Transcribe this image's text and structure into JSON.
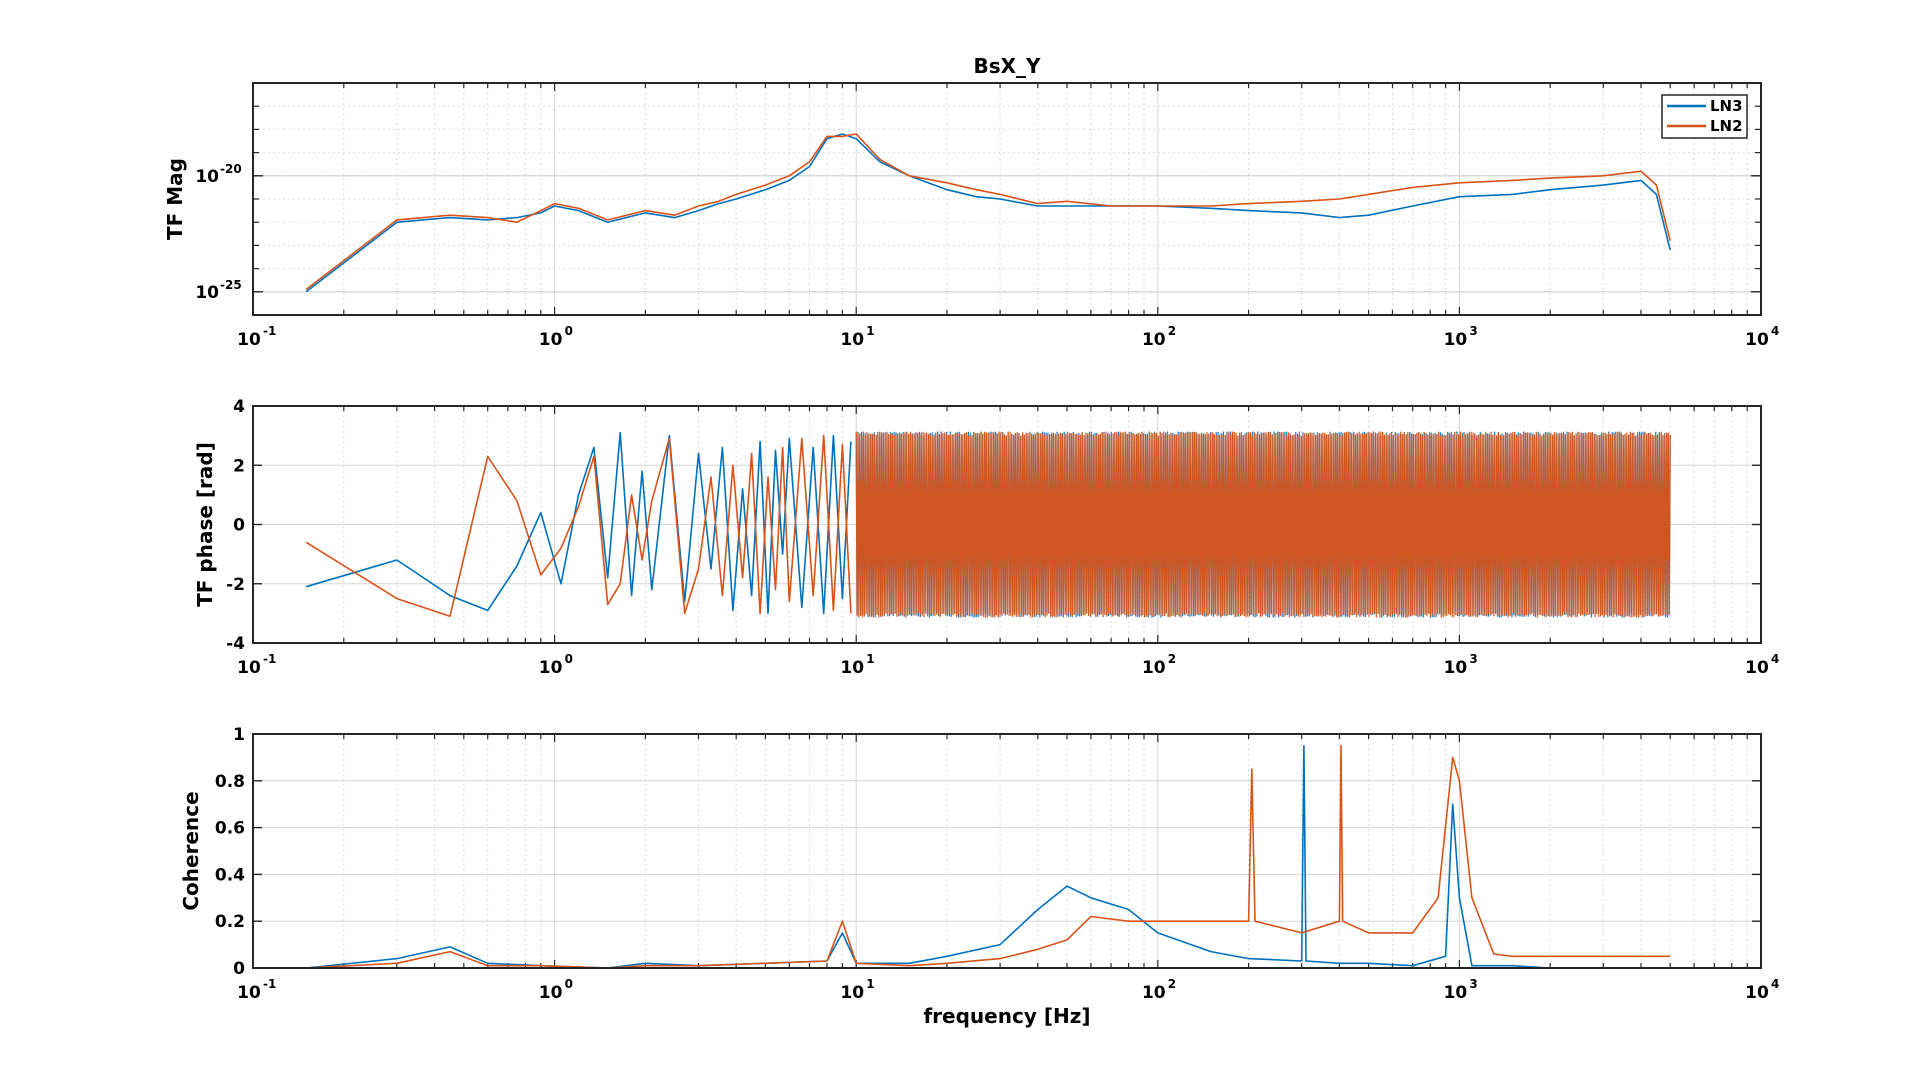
{
  "figure": {
    "title": "BsX_Y",
    "xlabel": "frequency [Hz]",
    "colors": {
      "LN3": "#0072BD",
      "LN2": "#D95319"
    }
  },
  "legend": {
    "items": [
      "LN3",
      "LN2"
    ],
    "placement": "top-right"
  },
  "chart_data": [
    {
      "type": "line",
      "panel": "magnitude",
      "ylabel": "TF Mag",
      "xscale": "log",
      "yscale": "log",
      "xlim": [
        0.1,
        10000
      ],
      "ylim_log10": [
        -26,
        -16
      ],
      "xtick_exponents": [
        -1,
        0,
        1,
        2,
        3,
        4
      ],
      "ytick_exponents": [
        -20,
        -25
      ],
      "grid": true,
      "series": [
        {
          "name": "LN3",
          "x": [
            0.15,
            0.3,
            0.45,
            0.6,
            0.75,
            0.9,
            1.0,
            1.2,
            1.5,
            2.0,
            2.5,
            3.0,
            3.5,
            4.0,
            5.0,
            6.0,
            7.0,
            8.0,
            9.0,
            10.0,
            12.0,
            15.0,
            20.0,
            25.0,
            30.0,
            40.0,
            50.0,
            70.0,
            100.0,
            150.0,
            200.0,
            300.0,
            400.0,
            500.0,
            700.0,
            1000.0,
            1500.0,
            2000.0,
            3000.0,
            4000.0,
            4500.0,
            5000.0
          ],
          "log10_y": [
            -25.0,
            -22.0,
            -21.8,
            -21.9,
            -21.8,
            -21.6,
            -21.3,
            -21.5,
            -22.0,
            -21.6,
            -21.8,
            -21.5,
            -21.2,
            -21.0,
            -20.6,
            -20.2,
            -19.6,
            -18.4,
            -18.2,
            -18.4,
            -19.4,
            -20.0,
            -20.6,
            -20.9,
            -21.0,
            -21.3,
            -21.3,
            -21.3,
            -21.3,
            -21.4,
            -21.5,
            -21.6,
            -21.8,
            -21.7,
            -21.3,
            -20.9,
            -20.8,
            -20.6,
            -20.4,
            -20.2,
            -20.8,
            -23.2
          ]
        },
        {
          "name": "LN2",
          "x": [
            0.15,
            0.3,
            0.45,
            0.6,
            0.75,
            0.9,
            1.0,
            1.2,
            1.5,
            2.0,
            2.5,
            3.0,
            3.5,
            4.0,
            5.0,
            6.0,
            7.0,
            8.0,
            9.0,
            10.0,
            12.0,
            15.0,
            20.0,
            25.0,
            30.0,
            40.0,
            50.0,
            70.0,
            100.0,
            150.0,
            200.0,
            300.0,
            400.0,
            500.0,
            700.0,
            1000.0,
            1500.0,
            2000.0,
            3000.0,
            4000.0,
            4500.0,
            5000.0
          ],
          "log10_y": [
            -24.9,
            -21.9,
            -21.7,
            -21.8,
            -22.0,
            -21.5,
            -21.2,
            -21.4,
            -21.9,
            -21.5,
            -21.7,
            -21.3,
            -21.1,
            -20.8,
            -20.4,
            -20.0,
            -19.4,
            -18.3,
            -18.3,
            -18.2,
            -19.3,
            -20.0,
            -20.3,
            -20.6,
            -20.8,
            -21.2,
            -21.1,
            -21.3,
            -21.3,
            -21.3,
            -21.2,
            -21.1,
            -21.0,
            -20.8,
            -20.5,
            -20.3,
            -20.2,
            -20.1,
            -20.0,
            -19.8,
            -20.4,
            -22.8
          ]
        }
      ]
    },
    {
      "type": "line",
      "panel": "phase",
      "ylabel": "TF phase [rad]",
      "xscale": "log",
      "xlim": [
        0.1,
        10000
      ],
      "ylim": [
        -4,
        4
      ],
      "yticks": [
        4,
        2,
        0,
        -2,
        -4
      ],
      "xtick_exponents": [
        -1,
        0,
        1,
        2,
        3,
        4
      ],
      "grid": true,
      "series": [
        {
          "name": "LN3",
          "x": [
            0.15,
            0.3,
            0.45,
            0.6,
            0.75,
            0.9,
            1.05,
            1.2,
            1.35,
            1.5,
            1.65,
            1.8,
            1.95,
            2.1,
            2.4,
            2.7,
            3.0,
            3.3,
            3.6,
            3.9,
            4.2,
            4.5,
            4.8,
            5.1,
            5.4,
            5.7,
            6.0,
            6.6,
            7.2,
            7.8,
            8.4,
            9.0,
            9.6
          ],
          "y": [
            -2.1,
            -1.2,
            -2.4,
            -2.9,
            -1.4,
            0.4,
            -2.0,
            1.0,
            2.6,
            -1.8,
            3.1,
            -2.4,
            1.8,
            -2.2,
            3.0,
            -2.6,
            2.4,
            -1.5,
            2.6,
            -2.9,
            1.2,
            -2.4,
            2.8,
            -3.0,
            2.5,
            -1.0,
            2.9,
            -2.8,
            2.6,
            -3.0,
            3.0,
            -2.5,
            2.8
          ]
        },
        {
          "name": "LN2",
          "x": [
            0.15,
            0.3,
            0.45,
            0.6,
            0.75,
            0.9,
            1.05,
            1.2,
            1.35,
            1.5,
            1.65,
            1.8,
            1.95,
            2.1,
            2.4,
            2.7,
            3.0,
            3.3,
            3.6,
            3.9,
            4.2,
            4.5,
            4.8,
            5.1,
            5.4,
            5.7,
            6.0,
            6.6,
            7.2,
            7.8,
            8.4,
            9.0,
            9.6
          ],
          "y": [
            -0.6,
            -2.5,
            -3.1,
            2.3,
            0.8,
            -1.7,
            -0.8,
            0.6,
            2.3,
            -2.7,
            -2.0,
            1.0,
            -1.2,
            0.8,
            2.9,
            -3.0,
            -1.5,
            1.6,
            -2.4,
            2.0,
            -1.8,
            2.4,
            -3.0,
            1.6,
            -2.2,
            2.6,
            -2.6,
            2.9,
            -2.4,
            3.0,
            -2.9,
            2.7,
            -3.0
          ]
        }
      ],
      "dense_band": {
        "x_start": 10,
        "x_end": 5000,
        "y_min": -3.1416,
        "y_max": 3.1416
      }
    },
    {
      "type": "line",
      "panel": "coherence",
      "ylabel": "Coherence",
      "xscale": "log",
      "xlim": [
        0.1,
        10000
      ],
      "ylim": [
        0,
        1
      ],
      "yticks": [
        1,
        0.8,
        0.6,
        0.4,
        0.2,
        0
      ],
      "xtick_exponents": [
        -1,
        0,
        1,
        2,
        3,
        4
      ],
      "grid": true,
      "series": [
        {
          "name": "LN3",
          "x": [
            0.15,
            0.3,
            0.45,
            0.6,
            0.9,
            1.5,
            2.0,
            3.0,
            5.0,
            8.0,
            9.0,
            10.0,
            15.0,
            20.0,
            30.0,
            40.0,
            50.0,
            60.0,
            80.0,
            100.0,
            150.0,
            200.0,
            300.0,
            305.0,
            310.0,
            400.0,
            500.0,
            700.0,
            900.0,
            950.0,
            1000.0,
            1100.0,
            1500.0,
            2000.0,
            3000.0,
            4000.0,
            5000.0
          ],
          "y": [
            0.0,
            0.04,
            0.09,
            0.02,
            0.01,
            0.0,
            0.02,
            0.01,
            0.02,
            0.03,
            0.15,
            0.02,
            0.02,
            0.05,
            0.1,
            0.25,
            0.35,
            0.3,
            0.25,
            0.15,
            0.07,
            0.04,
            0.03,
            0.95,
            0.03,
            0.02,
            0.02,
            0.01,
            0.05,
            0.7,
            0.3,
            0.01,
            0.01,
            0.0,
            0.0,
            0.0,
            0.0
          ]
        },
        {
          "name": "LN2",
          "x": [
            0.15,
            0.3,
            0.45,
            0.6,
            0.9,
            1.5,
            2.0,
            3.0,
            5.0,
            8.0,
            9.0,
            10.0,
            15.0,
            20.0,
            30.0,
            40.0,
            50.0,
            60.0,
            80.0,
            100.0,
            150.0,
            200.0,
            205.0,
            210.0,
            300.0,
            400.0,
            405.0,
            410.0,
            500.0,
            700.0,
            850.0,
            950.0,
            1000.0,
            1100.0,
            1300.0,
            1500.0,
            2000.0,
            3000.0,
            4000.0,
            5000.0
          ],
          "y": [
            0.0,
            0.02,
            0.07,
            0.01,
            0.01,
            0.0,
            0.01,
            0.01,
            0.02,
            0.03,
            0.2,
            0.02,
            0.01,
            0.02,
            0.04,
            0.08,
            0.12,
            0.22,
            0.2,
            0.2,
            0.2,
            0.2,
            0.85,
            0.2,
            0.15,
            0.2,
            0.95,
            0.2,
            0.15,
            0.15,
            0.3,
            0.9,
            0.8,
            0.3,
            0.06,
            0.05,
            0.05,
            0.05,
            0.05,
            0.05
          ]
        }
      ]
    }
  ]
}
